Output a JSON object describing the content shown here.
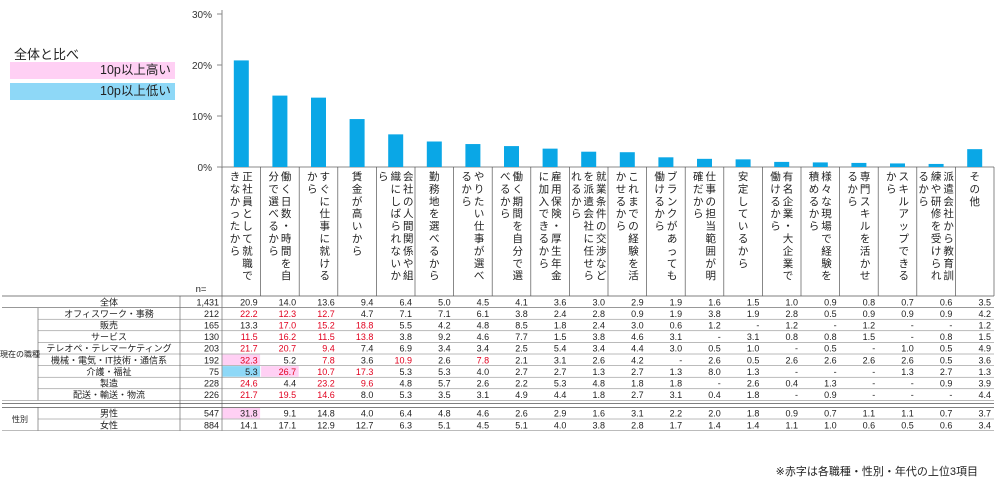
{
  "legend": {
    "title": "全体と比べ",
    "high": "10p以上高い",
    "low": "10p以上低い",
    "high_color": "#ffd0f4",
    "low_color": "#8ed8f7"
  },
  "note": "※赤字は各職種・性別・年代の上位3項目",
  "n_label": "n=",
  "colors": {
    "bar": "#0aa7e6",
    "highlight_text": "#e1001e"
  },
  "chart_data": {
    "type": "bar",
    "ylim": [
      0,
      30
    ],
    "yticks": [
      "30%",
      "20%",
      "10%",
      "0%"
    ],
    "ytick_values": [
      30,
      20,
      10,
      0
    ],
    "grid": false,
    "categories": [
      "正社員として就職できなかったから",
      "働く日数・時間を自分で選べるから",
      "すぐに仕事に就けるから",
      "賃金が高いから",
      "会社の人間関係や組織にしばられないから",
      "勤務地を選べるから",
      "やりたい仕事が選べるから",
      "働く期間を自分で選べるから",
      "雇用保険・厚生年金に加入できるから",
      "就業条件の交渉などを派遣会社に任せられるから",
      "これまでの経験を活かせるから",
      "ブランクがあっても働けるから",
      "仕事の担当範囲が明確だから",
      "安定しているから",
      "有名企業・大企業で働けるから",
      "様々な現場で経験を積めるから",
      "専門スキルを活かせるから",
      "スキルアップできるから",
      "派遣会社から教育訓練や研修を受けられるから",
      "その他"
    ],
    "values": [
      20.9,
      14.0,
      13.6,
      9.4,
      6.4,
      5.0,
      4.5,
      4.1,
      3.6,
      3.0,
      2.9,
      1.9,
      1.6,
      1.5,
      1.0,
      0.9,
      0.8,
      0.7,
      0.6,
      3.5
    ]
  },
  "table": {
    "group_labels": [
      "現在の職種",
      "性別"
    ],
    "rows": [
      {
        "label": "全体",
        "n": "1,431",
        "values": [
          "20.9",
          "14.0",
          "13.6",
          "9.4",
          "6.4",
          "5.0",
          "4.5",
          "4.1",
          "3.6",
          "3.0",
          "2.9",
          "1.9",
          "1.6",
          "1.5",
          "1.0",
          "0.9",
          "0.8",
          "0.7",
          "0.6",
          "3.5"
        ],
        "red": [],
        "high": [],
        "low": []
      },
      {
        "label": "オフィスワーク・事務",
        "n": "212",
        "values": [
          "22.2",
          "12.3",
          "12.7",
          "4.7",
          "7.1",
          "7.1",
          "6.1",
          "3.8",
          "2.4",
          "2.8",
          "0.9",
          "1.9",
          "3.8",
          "1.9",
          "2.8",
          "0.5",
          "0.9",
          "0.9",
          "0.9",
          "4.2"
        ],
        "red": [
          0,
          1,
          2
        ],
        "high": [],
        "low": []
      },
      {
        "label": "販売",
        "n": "165",
        "values": [
          "13.3",
          "17.0",
          "15.2",
          "18.8",
          "5.5",
          "4.2",
          "4.8",
          "8.5",
          "1.8",
          "2.4",
          "3.0",
          "0.6",
          "1.2",
          "-",
          "1.2",
          "-",
          "1.2",
          "-",
          "-",
          "1.2"
        ],
        "red": [
          1,
          2,
          3
        ],
        "high": [],
        "low": []
      },
      {
        "label": "サービス",
        "n": "130",
        "values": [
          "11.5",
          "16.2",
          "11.5",
          "13.8",
          "3.8",
          "9.2",
          "4.6",
          "7.7",
          "1.5",
          "3.8",
          "4.6",
          "3.1",
          "-",
          "3.1",
          "0.8",
          "0.8",
          "1.5",
          "-",
          "0.8",
          "1.5"
        ],
        "red": [
          0,
          1,
          2,
          3
        ],
        "high": [],
        "low": []
      },
      {
        "label": "テレオペ・テレマーケティング",
        "n": "203",
        "values": [
          "21.7",
          "20.7",
          "9.4",
          "7.4",
          "6.9",
          "3.4",
          "3.4",
          "2.5",
          "5.4",
          "3.4",
          "4.4",
          "3.0",
          "0.5",
          "1.0",
          "-",
          "0.5",
          "-",
          "1.0",
          "0.5",
          "4.9"
        ],
        "red": [
          0,
          1,
          2
        ],
        "high": [],
        "low": []
      },
      {
        "label": "機械・電気・IT技術・通信系",
        "n": "192",
        "values": [
          "32.3",
          "5.2",
          "7.8",
          "3.6",
          "10.9",
          "2.6",
          "7.8",
          "2.1",
          "3.1",
          "2.6",
          "4.2",
          "-",
          "2.6",
          "0.5",
          "2.6",
          "2.6",
          "2.6",
          "2.6",
          "0.5",
          "3.6"
        ],
        "red": [
          0,
          2,
          4,
          6
        ],
        "high": [
          0
        ],
        "low": []
      },
      {
        "label": "介護・福祉",
        "n": "75",
        "values": [
          "5.3",
          "26.7",
          "10.7",
          "17.3",
          "5.3",
          "5.3",
          "4.0",
          "2.7",
          "2.7",
          "1.3",
          "2.7",
          "1.3",
          "8.0",
          "1.3",
          "-",
          "-",
          "-",
          "1.3",
          "2.7",
          "1.3"
        ],
        "red": [
          1,
          2,
          3
        ],
        "high": [
          1
        ],
        "low": [
          0
        ]
      },
      {
        "label": "製造",
        "n": "228",
        "values": [
          "24.6",
          "4.4",
          "23.2",
          "9.6",
          "4.8",
          "5.7",
          "2.6",
          "2.2",
          "5.3",
          "4.8",
          "1.8",
          "1.8",
          "-",
          "2.6",
          "0.4",
          "1.3",
          "-",
          "-",
          "0.9",
          "3.9"
        ],
        "red": [
          0,
          2,
          3
        ],
        "high": [],
        "low": []
      },
      {
        "label": "配送・輸送・物流",
        "n": "226",
        "values": [
          "21.7",
          "19.5",
          "14.6",
          "8.0",
          "5.3",
          "3.5",
          "3.1",
          "4.9",
          "4.4",
          "1.8",
          "2.7",
          "3.1",
          "0.4",
          "1.8",
          "-",
          "0.9",
          "-",
          "-",
          "-",
          "4.4"
        ],
        "red": [
          0,
          1,
          2
        ],
        "high": [],
        "low": []
      },
      {
        "label": "男性",
        "n": "547",
        "values": [
          "31.8",
          "9.1",
          "14.8",
          "4.0",
          "6.4",
          "4.8",
          "4.6",
          "2.6",
          "2.9",
          "1.6",
          "3.1",
          "2.2",
          "2.0",
          "1.8",
          "0.9",
          "0.7",
          "1.1",
          "1.1",
          "0.7",
          "3.7"
        ],
        "red": [],
        "high": [
          0
        ],
        "low": []
      },
      {
        "label": "女性",
        "n": "884",
        "values": [
          "14.1",
          "17.1",
          "12.9",
          "12.7",
          "6.3",
          "5.1",
          "4.5",
          "5.1",
          "4.0",
          "3.8",
          "2.8",
          "1.7",
          "1.4",
          "1.4",
          "1.1",
          "1.0",
          "0.6",
          "0.5",
          "0.6",
          "3.4"
        ],
        "red": [],
        "high": [],
        "low": []
      }
    ]
  }
}
